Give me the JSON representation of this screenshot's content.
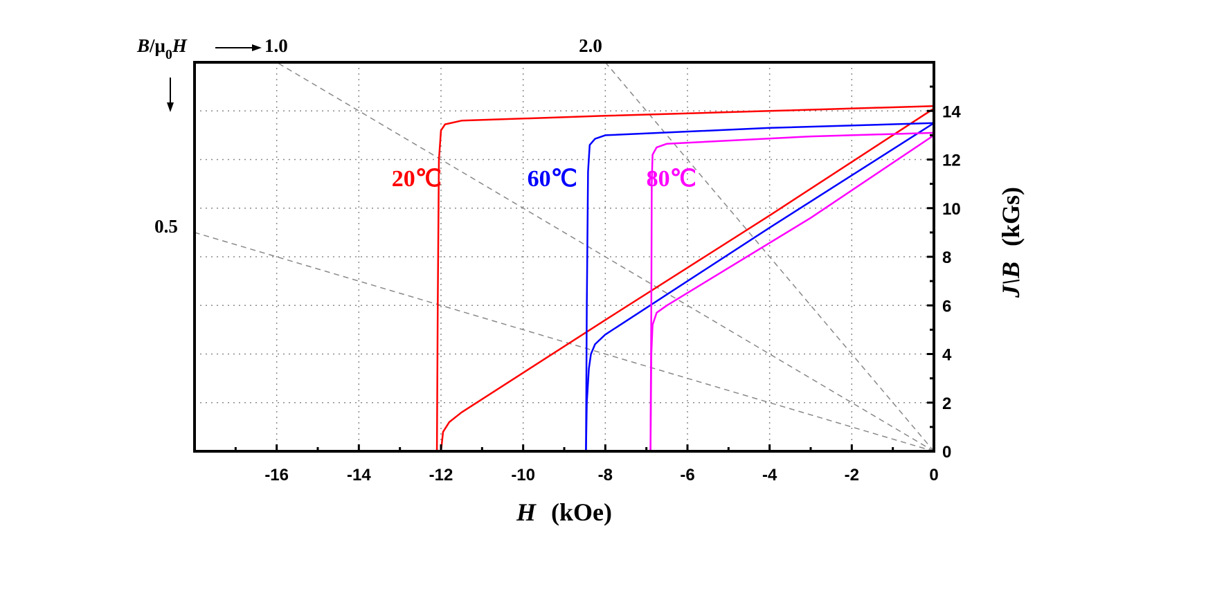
{
  "chart_data": {
    "type": "line",
    "xlabel_var": "H",
    "xlabel_unit": "(kOe)",
    "ylabel_var": "J\\B",
    "ylabel_unit": "(kGs)",
    "xlim": [
      -18,
      0
    ],
    "ylim": [
      0,
      16
    ],
    "x_ticks": [
      -16,
      -14,
      -12,
      -10,
      -8,
      -6,
      -4,
      -2,
      0
    ],
    "y_ticks": [
      0,
      2,
      4,
      6,
      8,
      10,
      12,
      14
    ],
    "grid": true,
    "series": [
      {
        "name": "20℃",
        "label": "20℃",
        "color": "#ff0000",
        "label_pos": [
          -13.2,
          10.9
        ],
        "J": [
          [
            0,
            14.2
          ],
          [
            -4,
            14.0
          ],
          [
            -8,
            13.8
          ],
          [
            -11.5,
            13.6
          ],
          [
            -11.9,
            13.45
          ],
          [
            -12.0,
            13.2
          ],
          [
            -12.05,
            12.0
          ],
          [
            -12.08,
            6
          ],
          [
            -12.1,
            0
          ]
        ],
        "B": [
          [
            0,
            14.1
          ],
          [
            -4,
            9.7
          ],
          [
            -8,
            5.4
          ],
          [
            -11.5,
            1.6
          ],
          [
            -11.8,
            1.2
          ],
          [
            -11.95,
            0.8
          ],
          [
            -12.0,
            0
          ]
        ]
      },
      {
        "name": "60℃",
        "label": "60℃",
        "color": "#0000ff",
        "label_pos": [
          -9.9,
          10.9
        ],
        "J": [
          [
            0,
            13.5
          ],
          [
            -4,
            13.3
          ],
          [
            -8,
            13.0
          ],
          [
            -8.25,
            12.85
          ],
          [
            -8.38,
            12.6
          ],
          [
            -8.42,
            11.5
          ],
          [
            -8.45,
            6
          ],
          [
            -8.47,
            0
          ]
        ],
        "B": [
          [
            0,
            13.5
          ],
          [
            -4,
            9.2
          ],
          [
            -8,
            4.8
          ],
          [
            -8.25,
            4.4
          ],
          [
            -8.35,
            4.0
          ],
          [
            -8.4,
            3.4
          ],
          [
            -8.45,
            2.0
          ],
          [
            -8.47,
            0
          ]
        ],
        "dummy": null
      },
      {
        "name": "80℃",
        "label": "80℃",
        "color": "#ff00ff",
        "label_pos": [
          -7.0,
          10.9
        ],
        "J": [
          [
            0,
            13.1
          ],
          [
            -3,
            12.95
          ],
          [
            -6.5,
            12.65
          ],
          [
            -6.75,
            12.5
          ],
          [
            -6.85,
            12.2
          ],
          [
            -6.87,
            11
          ],
          [
            -6.88,
            6
          ],
          [
            -6.9,
            0
          ]
        ],
        "B": [
          [
            0,
            13.0
          ],
          [
            -3,
            9.6
          ],
          [
            -6.5,
            6.0
          ],
          [
            -6.75,
            5.7
          ],
          [
            -6.85,
            5.2
          ],
          [
            -6.88,
            4
          ],
          [
            -6.9,
            0
          ]
        ]
      }
    ],
    "load_lines": [
      {
        "slope": 0.5,
        "label": "0.5"
      },
      {
        "slope": 1.0,
        "label": "1.0"
      },
      {
        "slope": 2.0,
        "label": "2.0"
      }
    ],
    "load_line_axis_label": "B/μ0H",
    "load_line_axis_label_parts": {
      "B": "B",
      "slash_mu": "/μ",
      "sub": "0",
      "H": "H"
    }
  }
}
